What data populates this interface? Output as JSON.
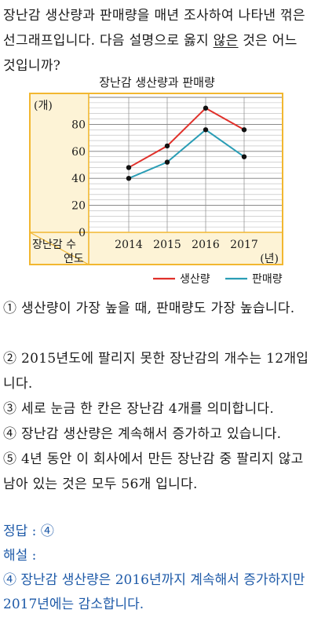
{
  "question": {
    "before": "장난감 생산량과 판매량을 매년 조사하여 나타낸 꺾은선그래프입니다. 다음 설명으로 옳지 ",
    "underlined": "않은",
    "after": " 것은 어느 것입니까?"
  },
  "chart_data": {
    "type": "line",
    "title": "장난감 생산량과 판매량",
    "x": [
      "2014",
      "2015",
      "2016",
      "2017"
    ],
    "series": [
      {
        "name": "생산량",
        "values": [
          48,
          64,
          92,
          76
        ],
        "color": "#e0302a"
      },
      {
        "name": "판매량",
        "values": [
          40,
          52,
          76,
          56
        ],
        "color": "#2a9db5"
      }
    ],
    "ylim": [
      0,
      100
    ],
    "yticks": [
      0,
      20,
      40,
      60,
      80
    ],
    "yunit": "(개)",
    "xunit": "(년)",
    "corner_top": "장난감 수",
    "corner_bottom": "연도",
    "legend_position": "bottom-right",
    "grid": true,
    "frame_color": "#f2b730",
    "panel_color": "#fdf3d6"
  },
  "options": [
    "① 생산량이 가장 높을 때, 판매량도 가장 높습니다.",
    "② 2015년도에 팔리지 못한 장난감의 개수는 12개입니다.",
    "③ 세로 눈금 한 칸은 장난감 4개를 의미합니다.",
    "④ 장난감 생산량은 계속해서 증가하고 있습니다.",
    "⑤ 4년 동안 이 회사에서 만든 장난감 중 팔리지 않고 남아 있는 것은 모두 56개 입니다."
  ],
  "answer": {
    "label": "정답 : ④",
    "explain_label": "해설 :",
    "explain": "④ 장난감 생산량은 2016년까지 계속해서 증가하지만 2017년에는 감소합니다."
  }
}
